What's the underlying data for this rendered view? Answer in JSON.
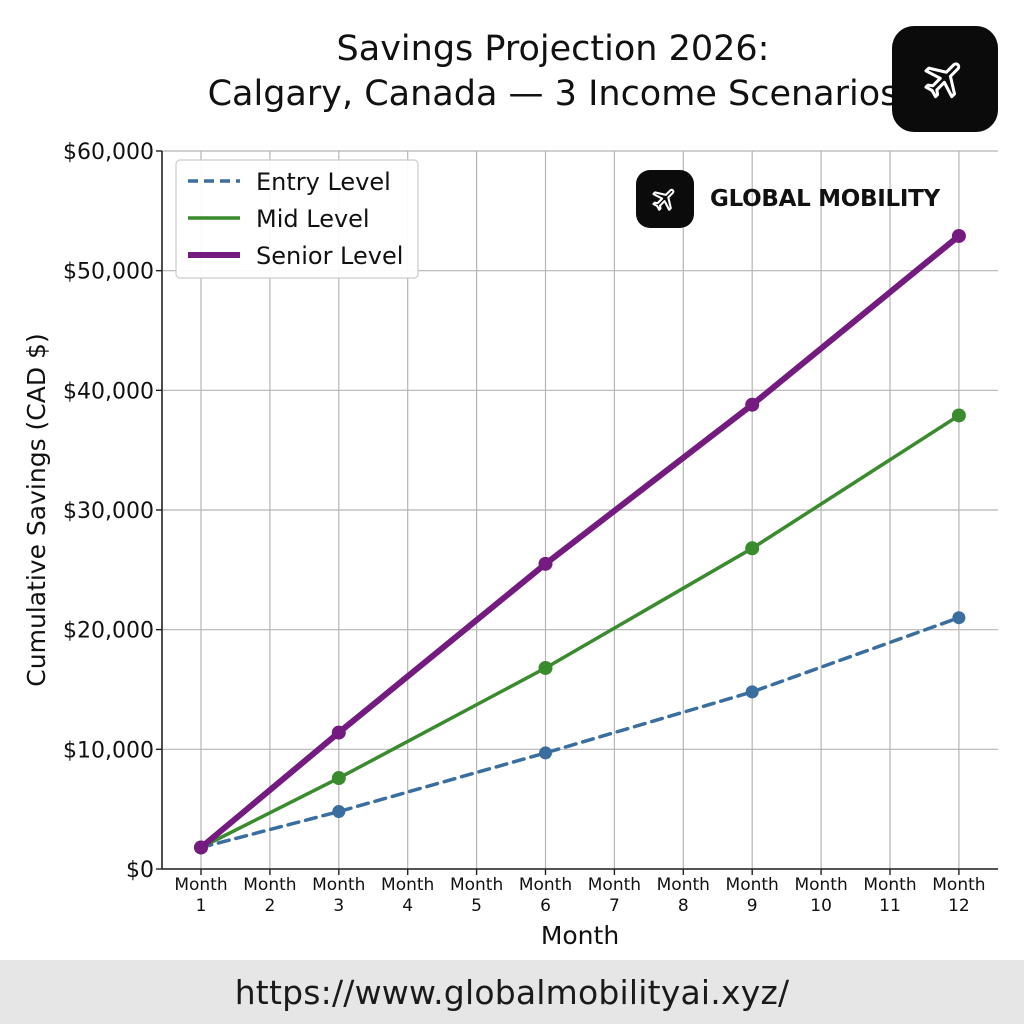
{
  "chart_data": {
    "type": "line",
    "title_line1": "Savings Projection 2026:",
    "title_line2": "Calgary, Canada — 3 Income Scenarios",
    "xlabel": "Month",
    "ylabel": "Cumulative Savings (CAD $)",
    "categories": [
      "Month 1",
      "Month 2",
      "Month 3",
      "Month 4",
      "Month 5",
      "Month 6",
      "Month 7",
      "Month 8",
      "Month 9",
      "Month 10",
      "Month 11",
      "Month 12"
    ],
    "tick_labels": [
      [
        "Month",
        "1"
      ],
      [
        "Month",
        "2"
      ],
      [
        "Month",
        "3"
      ],
      [
        "Month",
        "4"
      ],
      [
        "Month",
        "5"
      ],
      [
        "Month",
        "6"
      ],
      [
        "Month",
        "7"
      ],
      [
        "Month",
        "8"
      ],
      [
        "Month",
        "9"
      ],
      [
        "Month",
        "10"
      ],
      [
        "Month",
        "11"
      ],
      [
        "Month",
        "12"
      ]
    ],
    "ylim": [
      0,
      60000
    ],
    "y_ticks": [
      0,
      10000,
      20000,
      30000,
      40000,
      50000,
      60000
    ],
    "y_tick_labels": [
      "$0",
      "$10,000",
      "$20,000",
      "$30,000",
      "$40,000",
      "$50,000",
      "$60,000"
    ],
    "grid": true,
    "legend_position": "top-left",
    "series": [
      {
        "name": "Entry Level",
        "color": "#3a6e9e",
        "style": "dashed",
        "points": [
          [
            1,
            1800
          ],
          [
            3,
            4800
          ],
          [
            6,
            9700
          ],
          [
            9,
            14800
          ],
          [
            12,
            21000
          ]
        ]
      },
      {
        "name": "Mid Level",
        "color": "#3a8a2e",
        "style": "solid",
        "points": [
          [
            1,
            1800
          ],
          [
            3,
            7600
          ],
          [
            6,
            16800
          ],
          [
            9,
            26800
          ],
          [
            12,
            37900
          ]
        ]
      },
      {
        "name": "Senior Level",
        "color": "#741b80",
        "style": "solid-thick",
        "points": [
          [
            1,
            1800
          ],
          [
            3,
            11400
          ],
          [
            6,
            25500
          ],
          [
            9,
            38800
          ],
          [
            12,
            52900
          ]
        ]
      }
    ]
  },
  "branding": {
    "name": "GLOBAL MOBILITY",
    "icon": "airplane-icon",
    "url": "https://www.globalmobilityai.xyz/"
  }
}
